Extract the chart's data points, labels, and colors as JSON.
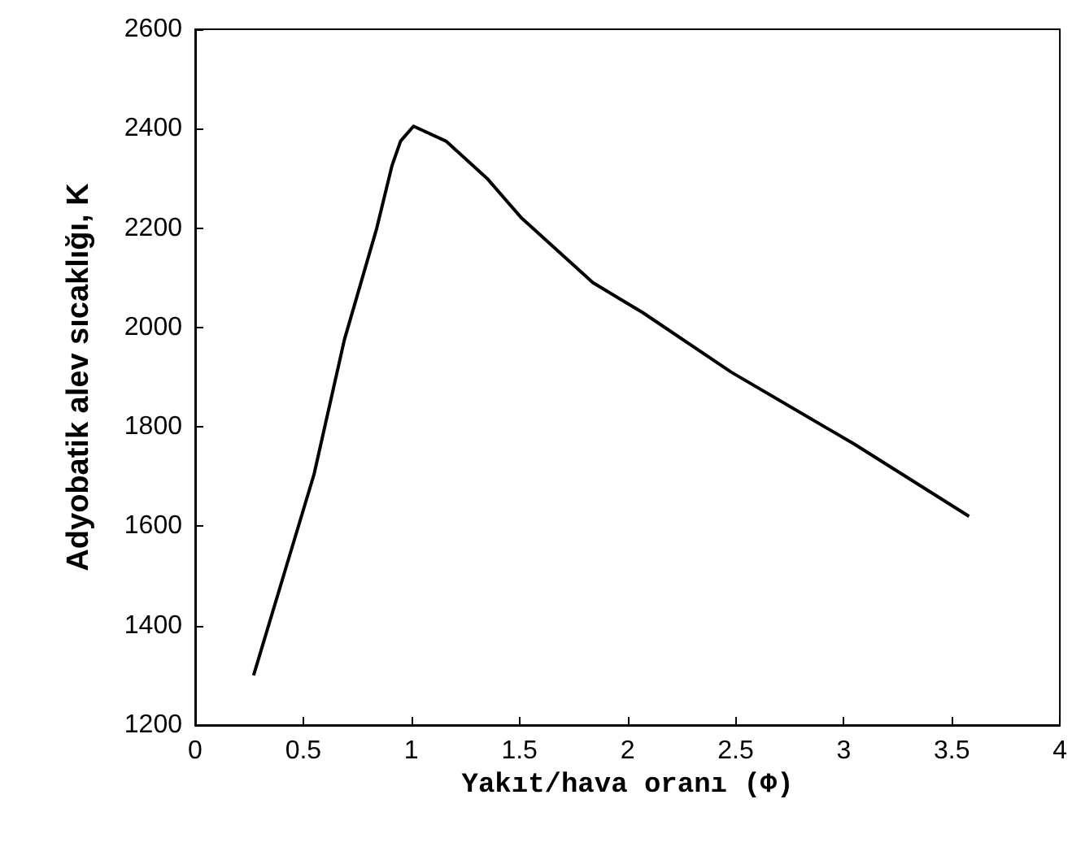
{
  "chart_data": {
    "type": "line",
    "xlabel": "Yakıt/hava oranı (Φ)",
    "ylabel": "Adyobatik alev sıcaklığı, K",
    "series": [
      {
        "color": "#000000",
        "x": [
          0.27,
          0.55,
          0.69,
          0.84,
          0.91,
          0.95,
          1.01,
          1.16,
          1.35,
          1.51,
          1.84,
          2.07,
          2.48,
          3.05,
          3.58
        ],
        "values": [
          1300,
          1705,
          1975,
          2200,
          2325,
          2375,
          2405,
          2375,
          2300,
          2220,
          2090,
          2030,
          1910,
          1765,
          1620
        ]
      }
    ],
    "xlim": [
      0,
      4
    ],
    "xticks": [
      0,
      0.5,
      1,
      1.5,
      2,
      2.5,
      3,
      3.5,
      4
    ],
    "ylim": [
      1200,
      2600
    ],
    "yticks": [
      1200,
      1400,
      1600,
      1800,
      2000,
      2200,
      2400,
      2600
    ],
    "grid": false,
    "marker": "none",
    "line_style": "solid"
  }
}
